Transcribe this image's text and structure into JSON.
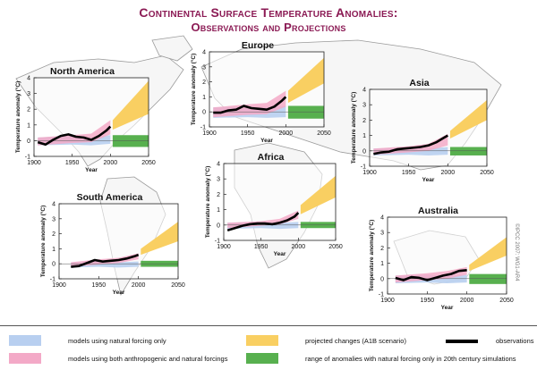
{
  "title": {
    "line1": "Continental Surface Temperature Anomalies:",
    "line2": "Observations and Projections"
  },
  "colors": {
    "natural": "#b8cff0",
    "anthropogenic": "#f3a9c7",
    "projected": "#f9cf62",
    "natural_range": "#58b04f",
    "observations": "#000000",
    "title": "#8b1a54"
  },
  "legend": {
    "natural": "models using natural forcing only",
    "anthropogenic": "models using both anthropogenic and natural forcings",
    "projected": "projected changes (A1B scenario)",
    "observations": "observations",
    "natural_range": "range of anomalies with natural forcing only in 20th century simulations"
  },
  "copyright": "©IPCC 2007: WG1-AR4",
  "chart_data": [
    {
      "type": "line",
      "title": "North America",
      "ylabel": "Temperature anomaly (°C)",
      "xlabel": "Year",
      "xlim": [
        1900,
        2050
      ],
      "ylim": [
        -1,
        4
      ],
      "xticks": [
        1900,
        1950,
        2000,
        2050
      ],
      "yticks": [
        -1,
        0,
        1,
        2,
        3,
        4
      ],
      "observations": {
        "x": [
          1905,
          1915,
          1925,
          1935,
          1945,
          1955,
          1965,
          1975,
          1985,
          1995,
          2000
        ],
        "y": [
          -0.1,
          -0.25,
          0.05,
          0.3,
          0.4,
          0.25,
          0.2,
          0.05,
          0.3,
          0.65,
          0.9
        ]
      },
      "natural_band": {
        "x": [
          1905,
          1950,
          1975,
          2000
        ],
        "low": [
          -0.3,
          -0.25,
          -0.3,
          -0.2
        ],
        "high": [
          0.2,
          0.3,
          0.2,
          0.35
        ]
      },
      "anthro_band": {
        "x": [
          1905,
          1950,
          1975,
          2000
        ],
        "low": [
          -0.3,
          -0.15,
          -0.1,
          0.4
        ],
        "high": [
          0.2,
          0.35,
          0.45,
          1.3
        ]
      },
      "projected_band": {
        "x": [
          2003,
          2050
        ],
        "low": [
          0.7,
          1.7
        ],
        "high": [
          1.3,
          3.8
        ]
      },
      "natural_range": {
        "low": -0.4,
        "high": 0.35
      }
    },
    {
      "type": "line",
      "title": "Europe",
      "ylabel": "Temperature anomaly (°C)",
      "xlabel": "Year",
      "xlim": [
        1900,
        2050
      ],
      "ylim": [
        -1,
        4
      ],
      "xticks": [
        1900,
        1950,
        2000,
        2050
      ],
      "yticks": [
        -1,
        0,
        1,
        2,
        3,
        4
      ],
      "observations": {
        "x": [
          1905,
          1915,
          1925,
          1935,
          1945,
          1955,
          1965,
          1975,
          1985,
          1995,
          2000
        ],
        "y": [
          -0.05,
          -0.05,
          0.1,
          0.15,
          0.4,
          0.25,
          0.2,
          0.15,
          0.35,
          0.75,
          1.0
        ]
      },
      "natural_band": {
        "x": [
          1905,
          1950,
          1975,
          2000
        ],
        "low": [
          -0.4,
          -0.35,
          -0.4,
          -0.35
        ],
        "high": [
          0.3,
          0.35,
          0.3,
          0.4
        ]
      },
      "anthro_band": {
        "x": [
          1905,
          1950,
          1975,
          2000
        ],
        "low": [
          -0.35,
          -0.2,
          -0.15,
          0.35
        ],
        "high": [
          0.3,
          0.5,
          0.6,
          1.4
        ]
      },
      "projected_band": {
        "x": [
          2003,
          2050
        ],
        "low": [
          0.6,
          1.9
        ],
        "high": [
          1.4,
          3.6
        ]
      },
      "natural_range": {
        "low": -0.45,
        "high": 0.4
      }
    },
    {
      "type": "line",
      "title": "Asia",
      "ylabel": "Temperature anomaly (°C)",
      "xlabel": "Year",
      "xlim": [
        1900,
        2050
      ],
      "ylim": [
        -1,
        4
      ],
      "xticks": [
        1900,
        1950,
        2000,
        2050
      ],
      "yticks": [
        -1,
        0,
        1,
        2,
        3,
        4
      ],
      "observations": {
        "x": [
          1905,
          1915,
          1925,
          1935,
          1945,
          1955,
          1965,
          1975,
          1985,
          1995,
          2000
        ],
        "y": [
          -0.2,
          -0.1,
          -0.05,
          0.1,
          0.15,
          0.2,
          0.25,
          0.35,
          0.55,
          0.85,
          1.0
        ]
      },
      "natural_band": {
        "x": [
          1905,
          1950,
          1975,
          2000
        ],
        "low": [
          -0.3,
          -0.25,
          -0.3,
          -0.25
        ],
        "high": [
          0.15,
          0.2,
          0.15,
          0.25
        ]
      },
      "anthro_band": {
        "x": [
          1905,
          1950,
          1975,
          2000
        ],
        "low": [
          -0.25,
          -0.1,
          0.0,
          0.35
        ],
        "high": [
          0.15,
          0.3,
          0.45,
          1.1
        ]
      },
      "projected_band": {
        "x": [
          2003,
          2050
        ],
        "low": [
          0.8,
          2.0
        ],
        "high": [
          1.3,
          3.3
        ]
      },
      "natural_range": {
        "low": -0.3,
        "high": 0.25
      }
    },
    {
      "type": "line",
      "title": "Africa",
      "ylabel": "Temperature anomaly (°C)",
      "xlabel": "Year",
      "xlim": [
        1900,
        2050
      ],
      "ylim": [
        -1,
        4
      ],
      "xticks": [
        1900,
        1950,
        2000,
        2050
      ],
      "yticks": [
        -1,
        0,
        1,
        2,
        3,
        4
      ],
      "observations": {
        "x": [
          1905,
          1915,
          1925,
          1935,
          1945,
          1955,
          1965,
          1975,
          1985,
          1995,
          2000
        ],
        "y": [
          -0.35,
          -0.2,
          -0.05,
          0.05,
          0.1,
          0.1,
          0.05,
          0.15,
          0.3,
          0.55,
          0.8
        ]
      },
      "natural_band": {
        "x": [
          1905,
          1950,
          1975,
          2000
        ],
        "low": [
          -0.25,
          -0.2,
          -0.25,
          -0.2
        ],
        "high": [
          0.15,
          0.2,
          0.15,
          0.2
        ]
      },
      "anthro_band": {
        "x": [
          1905,
          1950,
          1975,
          2000
        ],
        "low": [
          -0.2,
          -0.05,
          0.05,
          0.4
        ],
        "high": [
          0.15,
          0.25,
          0.4,
          0.95
        ]
      },
      "projected_band": {
        "x": [
          2003,
          2050
        ],
        "low": [
          0.7,
          1.8
        ],
        "high": [
          1.3,
          3.2
        ]
      },
      "natural_range": {
        "low": -0.2,
        "high": 0.2
      }
    },
    {
      "type": "line",
      "title": "South America",
      "ylabel": "Temperature anomaly (°C)",
      "xlabel": "Year",
      "xlim": [
        1900,
        2050
      ],
      "ylim": [
        -1,
        4
      ],
      "xticks": [
        1900,
        1950,
        2000,
        2050
      ],
      "yticks": [
        -1,
        0,
        1,
        2,
        3,
        4
      ],
      "observations": {
        "x": [
          1915,
          1925,
          1935,
          1945,
          1955,
          1965,
          1975,
          1985,
          1995,
          2000
        ],
        "y": [
          -0.2,
          -0.15,
          0.05,
          0.25,
          0.15,
          0.2,
          0.25,
          0.35,
          0.5,
          0.6
        ]
      },
      "natural_band": {
        "x": [
          1915,
          1950,
          1975,
          2000
        ],
        "low": [
          -0.25,
          -0.2,
          -0.25,
          -0.2
        ],
        "high": [
          0.1,
          0.15,
          0.1,
          0.15
        ]
      },
      "anthro_band": {
        "x": [
          1915,
          1950,
          1975,
          2000
        ],
        "low": [
          -0.2,
          -0.05,
          0.05,
          0.3
        ],
        "high": [
          0.1,
          0.3,
          0.4,
          0.7
        ]
      },
      "projected_band": {
        "x": [
          2003,
          2050
        ],
        "low": [
          0.6,
          1.5
        ],
        "high": [
          1.0,
          2.8
        ]
      },
      "natural_range": {
        "low": -0.2,
        "high": 0.2
      }
    },
    {
      "type": "line",
      "title": "Australia",
      "ylabel": "Temperature anomaly (°C)",
      "xlabel": "Year",
      "xlim": [
        1900,
        2050
      ],
      "ylim": [
        -1,
        4
      ],
      "xticks": [
        1900,
        1950,
        2000,
        2050
      ],
      "yticks": [
        -1,
        0,
        1,
        2,
        3,
        4
      ],
      "observations": {
        "x": [
          1910,
          1920,
          1930,
          1940,
          1950,
          1960,
          1970,
          1980,
          1990,
          2000
        ],
        "y": [
          0.05,
          -0.1,
          0.1,
          0.05,
          -0.1,
          0.05,
          0.2,
          0.3,
          0.5,
          0.55
        ]
      },
      "natural_band": {
        "x": [
          1910,
          1950,
          1975,
          2000
        ],
        "low": [
          -0.3,
          -0.25,
          -0.3,
          -0.25
        ],
        "high": [
          0.2,
          0.25,
          0.2,
          0.25
        ]
      },
      "anthro_band": {
        "x": [
          1910,
          1950,
          1975,
          2000
        ],
        "low": [
          -0.25,
          -0.1,
          0.0,
          0.25
        ],
        "high": [
          0.2,
          0.35,
          0.5,
          0.75
        ]
      },
      "projected_band": {
        "x": [
          2003,
          2050
        ],
        "low": [
          0.5,
          1.5
        ],
        "high": [
          0.9,
          2.7
        ]
      },
      "natural_range": {
        "low": -0.35,
        "high": 0.3
      }
    }
  ]
}
